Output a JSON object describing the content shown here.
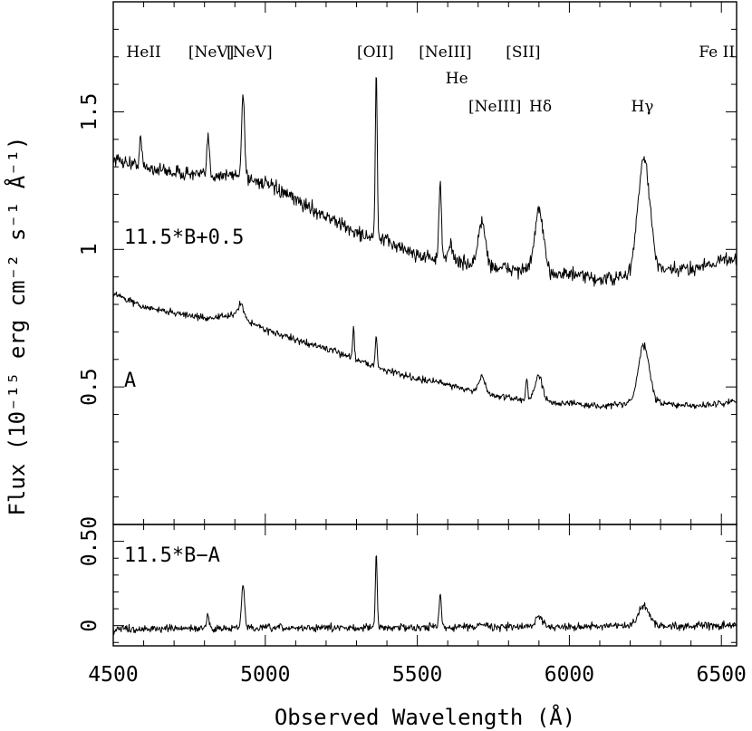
{
  "chart_data": {
    "type": "line",
    "xlabel": "Observed Wavelength (Å)",
    "ylabel": "Flux (10⁻¹⁵ erg cm⁻² s⁻¹ Å⁻¹)",
    "xlim": [
      4500,
      6550
    ],
    "x_ticks": [
      4500,
      5000,
      5500,
      6000,
      6500
    ],
    "x_tick_labels": [
      "4500",
      "5000",
      "5500",
      "6000",
      "6500"
    ],
    "panels": [
      {
        "ylim": [
          0,
          1.9
        ],
        "y_ticks": [
          0.5,
          1,
          1.5
        ],
        "y_tick_labels": [
          "0.5",
          "1",
          "1.5"
        ],
        "series": [
          {
            "name": "11.5*B+0.5",
            "label": "11.5*B+0.5",
            "label_x": 4610,
            "label_y": 1.02,
            "continuum": [
              [
                4500,
                1.33
              ],
              [
                4600,
                1.3
              ],
              [
                4700,
                1.28
              ],
              [
                4800,
                1.27
              ],
              [
                4900,
                1.27
              ],
              [
                5000,
                1.24
              ],
              [
                5100,
                1.18
              ],
              [
                5200,
                1.12
              ],
              [
                5300,
                1.06
              ],
              [
                5400,
                1.03
              ],
              [
                5500,
                0.98
              ],
              [
                5550,
                0.97
              ],
              [
                5600,
                0.96
              ],
              [
                5700,
                0.94
              ],
              [
                5800,
                0.93
              ],
              [
                5900,
                0.92
              ],
              [
                6000,
                0.91
              ],
              [
                6100,
                0.89
              ],
              [
                6200,
                0.9
              ],
              [
                6300,
                0.92
              ],
              [
                6400,
                0.93
              ],
              [
                6500,
                0.96
              ],
              [
                6550,
                0.97
              ]
            ],
            "lines": [
              [
                4590,
                0.1,
                4
              ],
              [
                4812,
                0.14,
                4
              ],
              [
                4927,
                0.3,
                5
              ],
              [
                5365,
                0.62,
                3
              ],
              [
                5575,
                0.27,
                4
              ],
              [
                5610,
                0.06,
                8
              ],
              [
                5712,
                0.16,
                12
              ],
              [
                5900,
                0.22,
                14
              ],
              [
                6245,
                0.42,
                20
              ]
            ],
            "noise": 0.025
          },
          {
            "name": "A",
            "label": "A",
            "label_x": 4610,
            "label_y": 0.5,
            "continuum": [
              [
                4500,
                0.84
              ],
              [
                4600,
                0.79
              ],
              [
                4700,
                0.77
              ],
              [
                4800,
                0.75
              ],
              [
                4900,
                0.76
              ],
              [
                5000,
                0.71
              ],
              [
                5100,
                0.67
              ],
              [
                5200,
                0.64
              ],
              [
                5300,
                0.6
              ],
              [
                5400,
                0.56
              ],
              [
                5500,
                0.53
              ],
              [
                5600,
                0.51
              ],
              [
                5700,
                0.48
              ],
              [
                5800,
                0.46
              ],
              [
                5900,
                0.45
              ],
              [
                6000,
                0.44
              ],
              [
                6100,
                0.43
              ],
              [
                6200,
                0.44
              ],
              [
                6300,
                0.44
              ],
              [
                6400,
                0.43
              ],
              [
                6500,
                0.44
              ],
              [
                6550,
                0.45
              ]
            ],
            "lines": [
              [
                4920,
                0.05,
                10
              ],
              [
                5290,
                0.11,
                3
              ],
              [
                5365,
                0.11,
                3
              ],
              [
                5712,
                0.06,
                10
              ],
              [
                5860,
                0.08,
                3
              ],
              [
                5900,
                0.09,
                12
              ],
              [
                6245,
                0.21,
                18
              ]
            ],
            "noise": 0.012
          }
        ]
      },
      {
        "ylim": [
          -0.12,
          0.6
        ],
        "y_ticks": [
          0,
          0.5
        ],
        "y_tick_labels": [
          "0",
          "0.50"
        ],
        "series": [
          {
            "name": "11.5*B−A",
            "label": "11.5*B−A",
            "label_x": 4610,
            "label_y": 0.38,
            "continuum": [
              [
                4500,
                -0.02
              ],
              [
                6550,
                0.0
              ]
            ],
            "lines": [
              [
                4812,
                0.08,
                4
              ],
              [
                4927,
                0.26,
                5
              ],
              [
                5365,
                0.44,
                3
              ],
              [
                5575,
                0.2,
                4
              ],
              [
                5712,
                0.03,
                10
              ],
              [
                5900,
                0.06,
                12
              ],
              [
                6245,
                0.12,
                18
              ]
            ],
            "noise": 0.022
          }
        ]
      }
    ],
    "annotations": [
      {
        "text": "HeII",
        "x": 4600,
        "row": 1
      },
      {
        "text": "[NeV]",
        "x": 4822,
        "row": 1
      },
      {
        "text": "[NeV]",
        "x": 4948,
        "row": 1
      },
      {
        "text": "[OII]",
        "x": 5362,
        "row": 1
      },
      {
        "text": "[NeIII]",
        "x": 5592,
        "row": 1
      },
      {
        "text": "[SII]",
        "x": 5848,
        "row": 1
      },
      {
        "text": "Fe II",
        "x": 6485,
        "row": 1
      },
      {
        "text": "He",
        "x": 5630,
        "row": 2
      },
      {
        "text": "[NeIII]",
        "x": 5755,
        "row": 3
      },
      {
        "text": "Hδ",
        "x": 5905,
        "row": 3
      },
      {
        "text": "Hγ",
        "x": 6240,
        "row": 3
      }
    ]
  }
}
